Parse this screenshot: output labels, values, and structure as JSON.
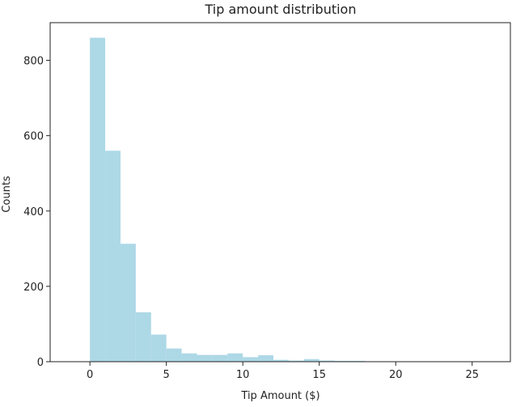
{
  "chart_data": {
    "type": "bar",
    "title": "Tip amount distribution",
    "xlabel": "Tip Amount ($)",
    "ylabel": "Counts",
    "xlim": [
      -2.6,
      27.5
    ],
    "ylim": [
      0,
      900
    ],
    "xticks": [
      0,
      5,
      10,
      15,
      20,
      25
    ],
    "yticks": [
      0,
      200,
      400,
      600,
      800
    ],
    "bar_color": "#add8e6",
    "bin_edges": [
      0,
      1,
      2,
      3,
      4,
      5,
      6,
      7,
      8,
      9,
      10,
      11,
      12,
      13,
      14,
      15,
      16,
      17,
      18,
      19,
      20,
      21,
      22,
      23,
      24,
      25,
      26
    ],
    "values": [
      860,
      560,
      313,
      131,
      72,
      35,
      22,
      18,
      18,
      22,
      12,
      17,
      5,
      3,
      7,
      3,
      2,
      2,
      1,
      1,
      1,
      0,
      0,
      0,
      0,
      1
    ],
    "grid": false,
    "legend": false
  }
}
